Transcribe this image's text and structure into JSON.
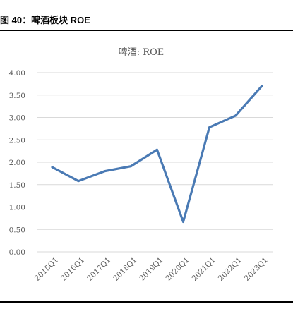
{
  "figure": {
    "title": "图 40：啤酒板块 ROE"
  },
  "chart_data": {
    "type": "line",
    "title": "啤酒: ROE",
    "xlabel": "",
    "ylabel": "",
    "categories": [
      "2015Q1",
      "2016Q1",
      "2017Q1",
      "2018Q1",
      "2019Q1",
      "2020Q1",
      "2021Q1",
      "2022Q1",
      "2023Q1"
    ],
    "series": [
      {
        "values": [
          1.89,
          1.58,
          1.8,
          1.91,
          2.28,
          0.67,
          2.78,
          3.04,
          3.7
        ],
        "color": "#4a7ab4"
      }
    ],
    "ylim": [
      0,
      4
    ],
    "yticks": [
      "0.00",
      "0.50",
      "1.00",
      "1.50",
      "2.00",
      "2.50",
      "3.00",
      "3.50",
      "4.00"
    ],
    "grid": true,
    "legend": "none",
    "gridColor": "#d9d9d9",
    "textColor": "#595959"
  }
}
